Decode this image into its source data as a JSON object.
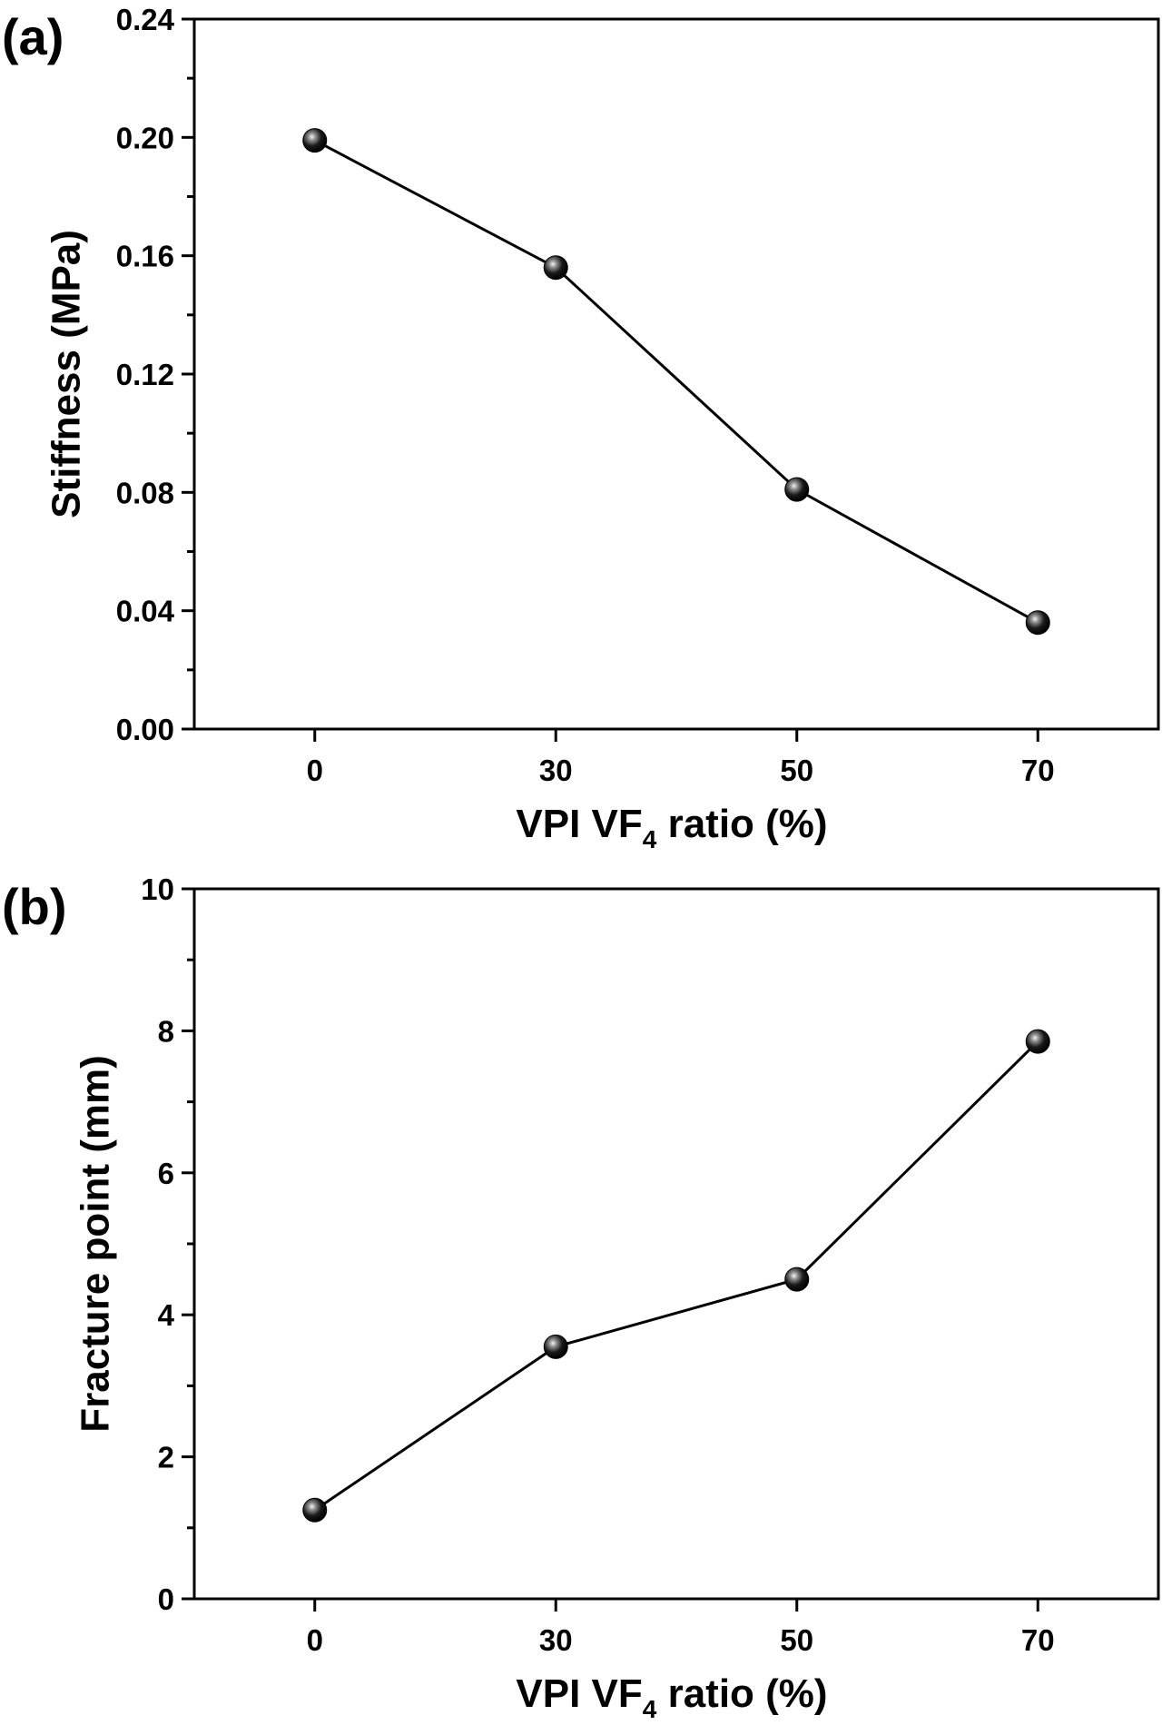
{
  "chart_data": [
    {
      "type": "line",
      "panel_label": "(a)",
      "title": "",
      "xlabel": "VPI VF",
      "xlabel_subscript": "4",
      "xlabel_suffix": " ratio (%)",
      "ylabel": "Stiffness (MPa)",
      "categories": [
        "0",
        "30",
        "50",
        "70"
      ],
      "x": [
        0,
        30,
        50,
        70
      ],
      "series": [
        {
          "name": "Stiffness",
          "values": [
            0.199,
            0.156,
            0.081,
            0.036
          ]
        }
      ],
      "ylim": [
        0,
        0.24
      ],
      "yticks": [
        "0.00",
        "0.04",
        "0.08",
        "0.12",
        "0.16",
        "0.20",
        "0.24"
      ],
      "ytick_values": [
        0,
        0.04,
        0.08,
        0.12,
        0.16,
        0.2,
        0.24
      ],
      "grid": false,
      "legend": "none",
      "marker": "sphere",
      "colors": {
        "line": "#000000",
        "marker": "#111111"
      }
    },
    {
      "type": "line",
      "panel_label": "(b)",
      "title": "",
      "xlabel": "VPI VF",
      "xlabel_subscript": "4",
      "xlabel_suffix": " ratio (%)",
      "ylabel": "Fracture point (mm)",
      "categories": [
        "0",
        "30",
        "50",
        "70"
      ],
      "x": [
        0,
        30,
        50,
        70
      ],
      "series": [
        {
          "name": "Fracture point",
          "values": [
            1.25,
            3.55,
            4.5,
            7.85
          ]
        }
      ],
      "ylim": [
        0,
        10
      ],
      "yticks": [
        "0",
        "2",
        "4",
        "6",
        "8",
        "10"
      ],
      "ytick_values": [
        0,
        2,
        4,
        6,
        8,
        10
      ],
      "grid": false,
      "legend": "none",
      "marker": "sphere",
      "colors": {
        "line": "#000000",
        "marker": "#111111"
      }
    }
  ]
}
